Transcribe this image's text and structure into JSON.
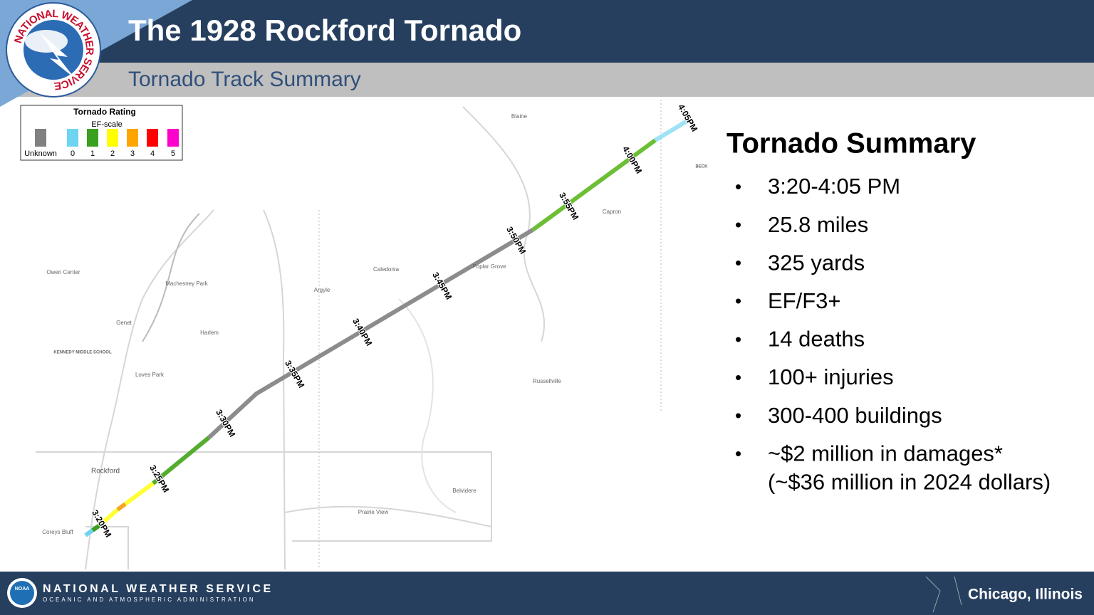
{
  "header": {
    "title": "The 1928 Rockford Tornado",
    "subtitle": "Tornado Track Summary"
  },
  "logo": {
    "ring_text": "NATIONAL WEATHER SERVICE"
  },
  "legend": {
    "title": "Tornado Rating",
    "subtitle": "EF-scale",
    "labels": [
      "Unknown",
      "0",
      "1",
      "2",
      "3",
      "4",
      "5"
    ]
  },
  "map": {
    "places": [
      "Blaine",
      "BECK",
      "Capron",
      "Owen Center",
      "Caledonia",
      "Poplar Grove",
      "Machesney Park",
      "Argyle",
      "Genet",
      "Harlem",
      "KENNEDY MIDDLE SCHOOL",
      "Loves Park",
      "Russellville",
      "Rockford",
      "Belvidere",
      "Prairie View",
      "Coreys Bluff"
    ],
    "times": [
      "3:20PM",
      "3:25PM",
      "3:30PM",
      "3:35PM",
      "3:40PM",
      "3:45PM",
      "3:50PM",
      "3:55PM",
      "4:00PM",
      "4:05PM"
    ]
  },
  "summary": {
    "heading": "Tornado Summary",
    "bullets": [
      "3:20-4:05 PM",
      "25.8 miles",
      "325 yards",
      "EF/F3+",
      "14 deaths",
      "100+ injuries",
      "300-400 buildings",
      "~$2 million in damages*",
      "(~$36 million in 2024 dollars)"
    ]
  },
  "footer": {
    "org": "NATIONAL WEATHER SERVICE",
    "parent": "OCEANIC AND ATMOSPHERIC ADMINISTRATION",
    "noaa": "NOAA",
    "office": "Chicago, Illinois"
  }
}
